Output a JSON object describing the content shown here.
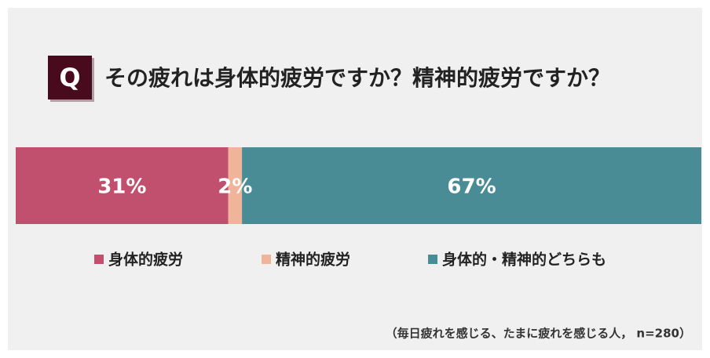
{
  "chart_data": {
    "type": "bar",
    "stacked": true,
    "orientation": "horizontal",
    "title_prefix": "Q",
    "title": "その疲れは身体的疲労ですか？精神的疲労ですか？",
    "xlim": [
      0,
      100
    ],
    "series": [
      {
        "name": "身体的疲労",
        "color": "#c0506e",
        "values": [
          31
        ],
        "value_labels": [
          "31%"
        ]
      },
      {
        "name": "精神的疲労",
        "color": "#f0b49a",
        "values": [
          2
        ],
        "value_labels": [
          "2%"
        ]
      },
      {
        "name": "身体的・精神的どちらも",
        "color": "#4a8c96",
        "values": [
          67
        ],
        "value_labels": [
          "67%"
        ]
      }
    ],
    "note": "（毎日疲れを感じる、たまに疲れを感じる人， n=280）"
  }
}
